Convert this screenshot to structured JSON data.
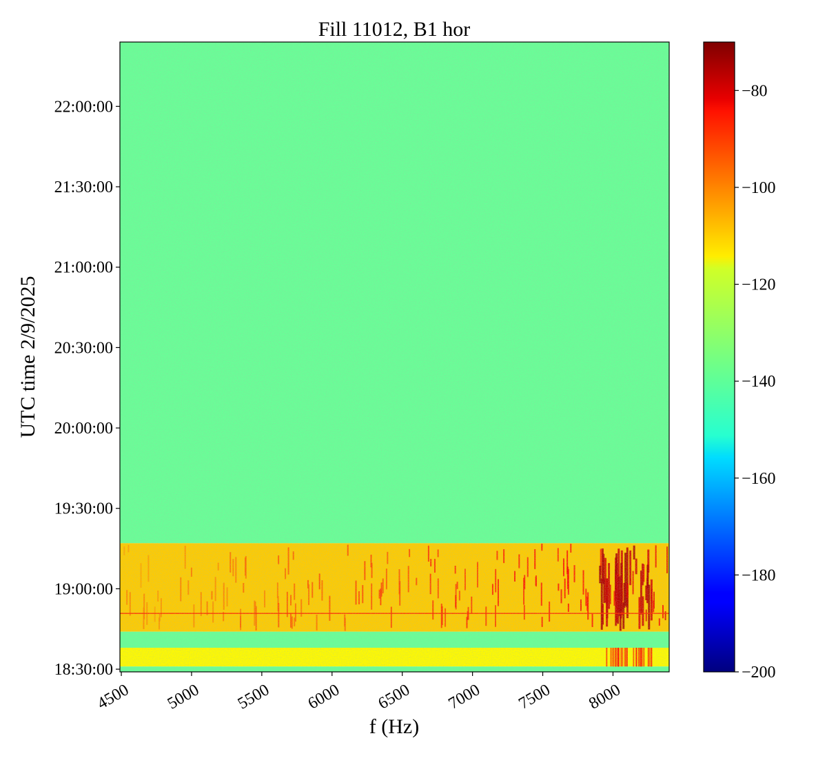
{
  "chart_data": {
    "type": "heatmap",
    "title": "Fill 11012, B1 hor",
    "xlabel": "f (Hz)",
    "ylabel": "UTC time 2/9/2025",
    "x_ticks": [
      4500,
      5000,
      5500,
      6000,
      6500,
      7000,
      7500,
      8000
    ],
    "x_tick_labels": [
      "4500",
      "5000",
      "5500",
      "6000",
      "6500",
      "7000",
      "7500",
      "8000"
    ],
    "xlim": [
      4490,
      8400
    ],
    "y_ticks": [
      "18:30:00",
      "19:00:00",
      "19:30:00",
      "20:00:00",
      "20:30:00",
      "21:00:00",
      "21:30:00",
      "22:00:00"
    ],
    "ylim": [
      "18:29:00",
      "22:24:00"
    ],
    "colorbar": {
      "colormap": "jet",
      "ticks": [
        -80,
        -100,
        -120,
        -140,
        -160,
        -180,
        -200
      ],
      "tick_labels": [
        "−80",
        "−100",
        "−120",
        "−140",
        "−160",
        "−180",
        "−200"
      ],
      "range": [
        -200,
        -70
      ]
    },
    "regions": [
      {
        "time_start": "19:17:00",
        "time_end": "22:24:00",
        "level": -138,
        "description": "noise floor"
      },
      {
        "time_start": "18:44:00",
        "time_end": "19:17:00",
        "level": -112,
        "description": "elevated"
      },
      {
        "time_start": "18:38:00",
        "time_end": "18:44:00",
        "level": -138,
        "description": "noise floor"
      },
      {
        "time_start": "18:31:00",
        "time_end": "18:38:00",
        "level": -118,
        "description": "elevated"
      },
      {
        "time_start": "18:29:00",
        "time_end": "18:31:00",
        "level": -138,
        "description": "noise floor"
      }
    ],
    "grid": false
  }
}
